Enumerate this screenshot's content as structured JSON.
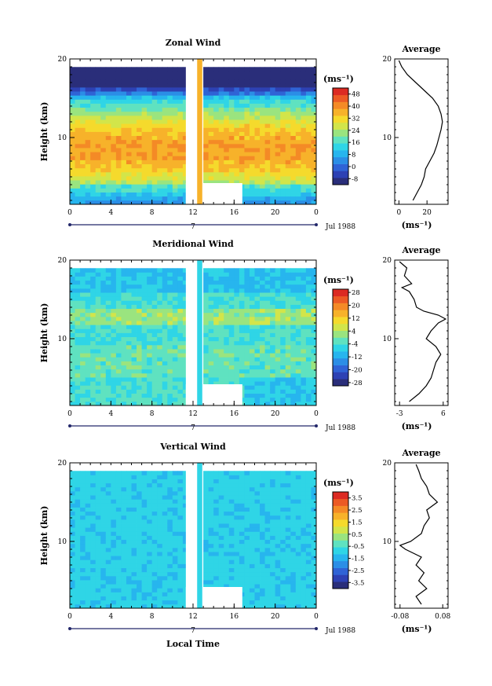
{
  "figure": {
    "date_label": "Jul 1988",
    "day_label": "7",
    "xlabel_bottom": "Local Time",
    "x_ticks": [
      "0",
      "4",
      "8",
      "12",
      "16",
      "20",
      "0"
    ]
  },
  "colors": {
    "scale": [
      "#2a2e7a",
      "#2d41b4",
      "#2f63d6",
      "#2b8ee6",
      "#27b5ee",
      "#2fd5e6",
      "#5fe2c0",
      "#9ae47f",
      "#d2e54a",
      "#f5da2c",
      "#f7b22a",
      "#f48a26",
      "#ec5a24",
      "#dc2a22"
    ],
    "gap": "#ffffff"
  },
  "chart_data": [
    {
      "type": "heatmap",
      "panel": "zonal",
      "title": "Zonal Wind",
      "ylabel": "Height (km)",
      "y_ticks": [
        "10",
        "20"
      ],
      "ylim": [
        1.5,
        20
      ],
      "xlim": [
        0,
        24
      ],
      "x_unit": "hours local time",
      "colorbar_unit": "(ms⁻¹)",
      "colorbar_range": [
        -12,
        52
      ],
      "colorbar_ticks": [
        "48",
        "40",
        "32",
        "24",
        "16",
        "8",
        "0",
        "-8"
      ],
      "data_gap_hours": [
        11.3,
        13.0
      ],
      "low_level_gap": {
        "hours": [
          11.3,
          16.8
        ],
        "below_km": 4.2
      },
      "profile": {
        "title": "Average",
        "xlabel": "(ms⁻¹)",
        "x_ticks": [
          "0",
          "20"
        ],
        "xlim": [
          -3,
          35
        ],
        "height_km": [
          2.0,
          3,
          4,
          5,
          6,
          7,
          8,
          9,
          10,
          11,
          12,
          13,
          14,
          15,
          16,
          17,
          18,
          19,
          19.8
        ],
        "value": [
          10,
          13,
          16,
          18,
          19,
          22,
          25,
          27,
          28.5,
          30,
          31,
          30,
          28,
          24,
          18,
          12,
          6,
          2,
          0
        ]
      }
    },
    {
      "type": "heatmap",
      "panel": "meridional",
      "title": "Meridional Wind",
      "ylabel": "Height (km)",
      "y_ticks": [
        "10",
        "20"
      ],
      "ylim": [
        1.5,
        20
      ],
      "xlim": [
        0,
        24
      ],
      "x_unit": "hours local time",
      "colorbar_unit": "(ms⁻¹)",
      "colorbar_range": [
        -30,
        30
      ],
      "colorbar_ticks": [
        "28",
        "20",
        "12",
        "4",
        "-4",
        "-12",
        "-20",
        "-28"
      ],
      "data_gap_hours": [
        11.3,
        13.0
      ],
      "low_level_gap": {
        "hours": [
          11.3,
          16.8
        ],
        "below_km": 4.2
      },
      "profile": {
        "title": "Average",
        "xlabel": "(ms⁻¹)",
        "x_ticks": [
          "-3",
          "6"
        ],
        "xlim": [
          -4,
          7
        ],
        "height_km": [
          2.0,
          3,
          4,
          5,
          6,
          7,
          8,
          9,
          10,
          11,
          12,
          12.5,
          13,
          13.5,
          14,
          15,
          16,
          16.5,
          17,
          18,
          19,
          19.8
        ],
        "value": [
          -1,
          1,
          2.5,
          3.5,
          4,
          4.5,
          5.5,
          4.5,
          2.5,
          3.5,
          5,
          6.5,
          5,
          2,
          0.5,
          0,
          -1,
          -2.5,
          -0.5,
          -2,
          -1.5,
          -3
        ]
      }
    },
    {
      "type": "heatmap",
      "panel": "vertical",
      "title": "Vertical Wind",
      "ylabel": "Height (km)",
      "y_ticks": [
        "10",
        "20"
      ],
      "ylim": [
        1.5,
        20
      ],
      "xlim": [
        0,
        24
      ],
      "x_unit": "hours local time",
      "colorbar_unit": "(ms⁻¹)",
      "colorbar_range": [
        -4,
        4
      ],
      "colorbar_ticks": [
        "3.5",
        "2.5",
        "1.5",
        "0.5",
        "-0.5",
        "-1.5",
        "-2.5",
        "-3.5"
      ],
      "data_gap_hours": [
        11.3,
        13.0
      ],
      "low_level_gap": {
        "hours": [
          11.3,
          16.8
        ],
        "below_km": 4.2
      },
      "profile": {
        "title": "Average",
        "xlabel": "(ms⁻¹)",
        "x_ticks": [
          "-0.08",
          "0.08"
        ],
        "xlim": [
          -0.1,
          0.1
        ],
        "height_km": [
          2.0,
          3,
          4,
          5,
          6,
          7,
          8,
          9,
          9.5,
          10,
          11,
          12,
          13,
          14,
          15,
          16,
          17,
          18,
          19,
          19.8
        ],
        "value": [
          0.0,
          -0.02,
          0.02,
          -0.01,
          0.01,
          -0.02,
          0.0,
          -0.06,
          -0.08,
          -0.04,
          0.0,
          0.01,
          0.03,
          0.02,
          0.06,
          0.03,
          0.02,
          0.0,
          -0.01,
          -0.02
        ]
      }
    }
  ]
}
